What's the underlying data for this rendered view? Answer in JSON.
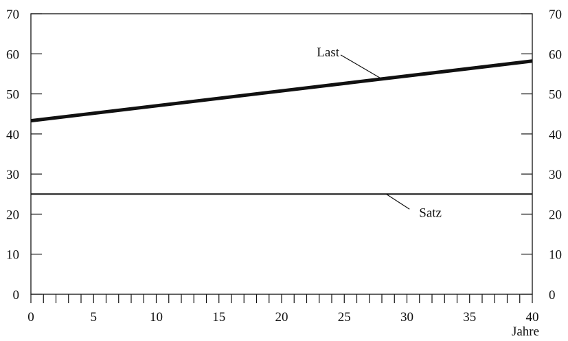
{
  "chart_data": {
    "type": "line",
    "title": "",
    "xlabel": "Jahre",
    "ylabel": "",
    "xlim": [
      0,
      40
    ],
    "ylim": [
      0,
      70
    ],
    "x_ticks": [
      0,
      5,
      10,
      15,
      20,
      25,
      30,
      35,
      40
    ],
    "x_minor_tick_step": 1,
    "y_ticks": [
      0,
      10,
      20,
      30,
      40,
      50,
      60,
      70
    ],
    "y_axis_right_mirrored": true,
    "grid": false,
    "legend": "none",
    "series": [
      {
        "name": "Last",
        "x": [
          0,
          40
        ],
        "y": [
          43.3,
          58.2
        ],
        "line_weight": "bold",
        "color": "#111111",
        "label_position": "above",
        "label_anchor_x": 28
      },
      {
        "name": "Satz",
        "x": [
          0,
          40
        ],
        "y": [
          25,
          25
        ],
        "line_weight": "thin",
        "color": "#111111",
        "label_position": "below",
        "label_anchor_x": 29
      }
    ]
  }
}
